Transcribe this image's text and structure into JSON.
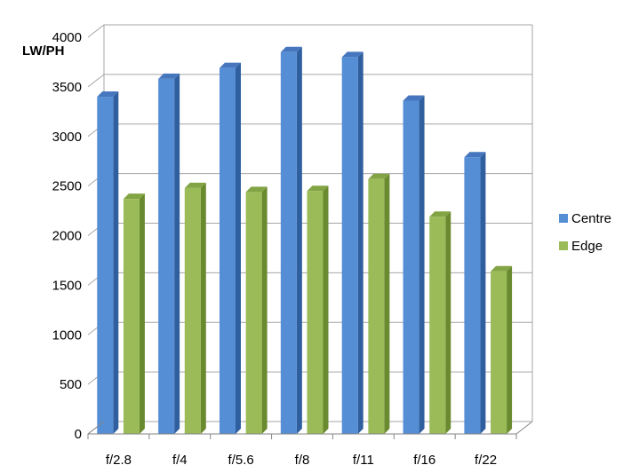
{
  "chart_data": {
    "type": "bar",
    "title": "",
    "xlabel": "",
    "ylabel": "LW/PH",
    "categories": [
      "f/2.8",
      "f/4",
      "f/5.6",
      "f/8",
      "f/11",
      "f/16",
      "f/22"
    ],
    "series": [
      {
        "name": "Centre",
        "values": [
          3400,
          3580,
          3690,
          3850,
          3800,
          3360,
          2790
        ]
      },
      {
        "name": "Edge",
        "values": [
          2370,
          2480,
          2440,
          2450,
          2570,
          2190,
          1640
        ]
      }
    ],
    "ylim": [
      0,
      4000
    ],
    "yticks": [
      "0",
      "500",
      "1000",
      "1500",
      "2000",
      "2500",
      "3000",
      "3500",
      "4000"
    ],
    "grid": true,
    "legend_position": "right",
    "colors": {
      "Centre": {
        "front": "#558ED5",
        "side": "#2F5F9E",
        "top": "#4677BE"
      },
      "Edge": {
        "front": "#9BBB59",
        "side": "#6A8A2F",
        "top": "#82A444"
      },
      "grid": "#A6A6A6",
      "axis": "#868686"
    }
  }
}
